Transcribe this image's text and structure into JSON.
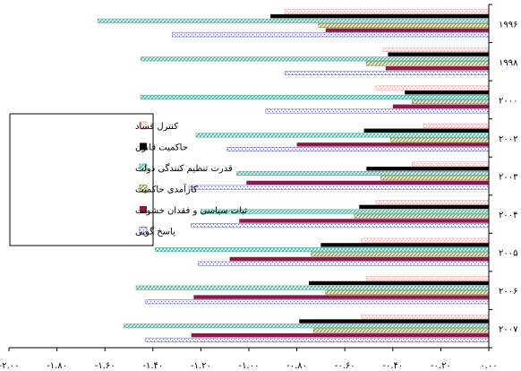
{
  "chart_data": {
    "type": "bar",
    "orientation": "horizontal",
    "title": "",
    "xlabel": "",
    "ylabel": "",
    "xlim": [
      -2.0,
      0.0
    ],
    "x_ticks": [
      0.0,
      -0.2,
      -0.4,
      -0.6,
      -0.8,
      -1.0,
      -1.2,
      -1.4,
      -1.6,
      -1.8,
      -2.0
    ],
    "x_tick_labels": [
      "۰.۰۰",
      "-۰.۲۰",
      "-۰.۴۰",
      "-۰.۶۰",
      "-۰.۸۰",
      "-۱.۰۰",
      "-۱.۲۰",
      "-۱.۴۰",
      "-۱.۶۰",
      "-۱.۸۰",
      "-۲.۰۰"
    ],
    "categories": [
      "۱۹۹۶",
      "۱۹۹۸",
      "۲۰۰۰",
      "۲۰۰۲",
      "۲۰۰۳",
      "۲۰۰۴",
      "۲۰۰۵",
      "۲۰۰۶",
      "۲۰۰۷"
    ],
    "grid": false,
    "legend_position": "left",
    "series": [
      {
        "name": "کنترل فساد",
        "color": "#f2a0a0",
        "pattern": "dots",
        "values": [
          -0.85,
          -0.44,
          -0.47,
          -0.27,
          -0.32,
          -0.47,
          -0.53,
          -0.51,
          -0.53
        ]
      },
      {
        "name": "حاکمیت قانون",
        "color": "#000000",
        "pattern": "solid",
        "values": [
          -0.91,
          -0.42,
          -0.35,
          -0.52,
          -0.51,
          -0.54,
          -0.7,
          -0.75,
          -0.79
        ]
      },
      {
        "name": "قدرت تنظیم کنندگی دولت",
        "color": "#40b0a0",
        "pattern": "hatch",
        "values": [
          -1.63,
          -1.45,
          -1.45,
          -1.22,
          -1.05,
          -1.2,
          -1.39,
          -1.47,
          -1.52
        ]
      },
      {
        "name": "کارآمدی حاکمیت",
        "color": "#8f8f40",
        "pattern": "diag",
        "values": [
          -0.71,
          -0.51,
          -0.32,
          -0.41,
          -0.45,
          -0.56,
          -0.74,
          -0.68,
          -0.73
        ]
      },
      {
        "name": "ثبات سیاسی و فقدان خشونت",
        "color": "#8b1a4a",
        "pattern": "solid",
        "values": [
          -0.68,
          -0.43,
          -0.4,
          -0.8,
          -1.01,
          -1.04,
          -1.08,
          -1.23,
          -1.24
        ]
      },
      {
        "name": "پاسخ گویی",
        "color": "#7070c0",
        "pattern": "dots",
        "values": [
          -1.32,
          -0.85,
          -0.93,
          -1.09,
          -1.25,
          -1.24,
          -1.21,
          -1.43,
          -1.43
        ]
      }
    ]
  }
}
